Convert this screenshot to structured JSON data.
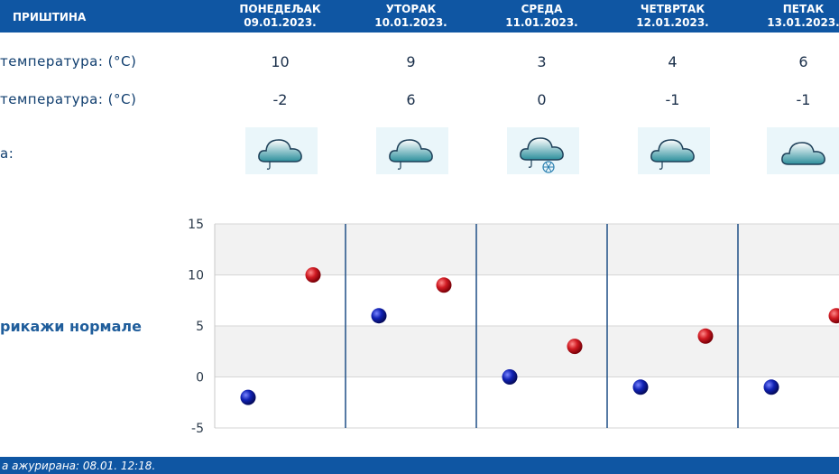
{
  "header": {
    "city": "ПРИШТИНА",
    "days": [
      {
        "name": "ПОНЕДЕЉАК",
        "date": "09.01.2023."
      },
      {
        "name": "УТОРАК",
        "date": "10.01.2023."
      },
      {
        "name": "СРЕДА",
        "date": "11.01.2023."
      },
      {
        "name": "ЧЕТВРТАК",
        "date": "12.01.2023."
      },
      {
        "name": "ПЕТАК",
        "date": "13.01.2023."
      }
    ]
  },
  "rows": {
    "max_label": "температура: (°C)",
    "min_label": "температура: (°C)",
    "weather_label": "а:"
  },
  "max_temps": [
    "10",
    "9",
    "3",
    "4",
    "6"
  ],
  "min_temps": [
    "-2",
    "6",
    "0",
    "-1",
    "-1"
  ],
  "weather_icons": [
    "cloud-rain-icon",
    "cloud-rain-icon",
    "cloud-rain-snow-icon",
    "cloud-rain-icon",
    "cloud-icon"
  ],
  "normals_link": "рикажи нормале",
  "footer": {
    "updated": "а ажурирана:  08.01.  12:18."
  },
  "colors": {
    "header_bg": "#0f56a3",
    "max_marker": "#c8141e",
    "min_marker": "#0a1aa8"
  },
  "chart_data": {
    "type": "scatter",
    "title": "",
    "xlabel": "",
    "ylabel": "",
    "ylim": [
      -5,
      15
    ],
    "yticks": [
      "15",
      "10",
      "5",
      "0",
      "-5"
    ],
    "categories": [
      "09.01.2023.",
      "10.01.2023.",
      "11.01.2023.",
      "12.01.2023.",
      "13.01.2023."
    ],
    "series": [
      {
        "values": [
          -2,
          6,
          0,
          -1,
          -1
        ],
        "color": "#0a1aa8"
      },
      {
        "values": [
          10,
          9,
          3,
          4,
          6
        ],
        "color": "#c8141e"
      }
    ],
    "grid": true
  }
}
